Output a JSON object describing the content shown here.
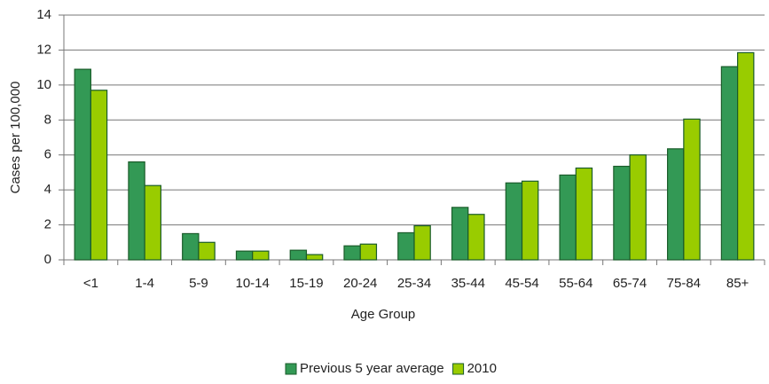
{
  "chart_data": {
    "type": "bar",
    "x_label": "Age Group",
    "y_label": "Cases per 100,000",
    "categories": [
      "<1",
      "1-4",
      "5-9",
      "10-14",
      "15-19",
      "20-24",
      "25-34",
      "35-44",
      "45-54",
      "55-64",
      "65-74",
      "75-84",
      "85+"
    ],
    "series": [
      {
        "name": "Previous 5 year average",
        "color": "#339955",
        "values": [
          10.9,
          5.6,
          1.5,
          0.5,
          0.55,
          0.8,
          1.55,
          3.0,
          4.4,
          4.85,
          5.35,
          6.35,
          11.05
        ]
      },
      {
        "name": "2010",
        "color": "#99cc00",
        "values": [
          9.7,
          4.25,
          1.0,
          0.5,
          0.3,
          0.9,
          1.95,
          2.6,
          4.5,
          5.25,
          6.0,
          8.05,
          11.85
        ]
      }
    ],
    "ylim": [
      0,
      14
    ],
    "yticks": [
      0,
      2,
      4,
      6,
      8,
      10,
      12,
      14
    ],
    "grid": true,
    "legend": "bottom"
  }
}
